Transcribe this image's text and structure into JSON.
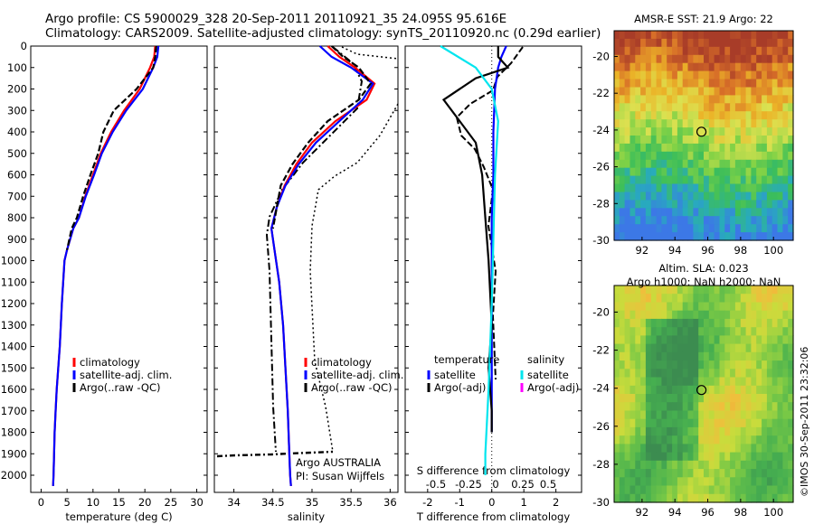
{
  "header": {
    "line1": "Argo profile: CS 5900029_328 20-Sep-2011 20110921_35 24.095S 95.616E",
    "line2": "Climatology: CARS2009. Satellite-adjusted climatology: synTS_20110920.nc (0.29d earlier)"
  },
  "footer": {
    "credit": "©IMOS 30-Sep-2011 23:32:06",
    "argo_label": "Argo AUSTRALIA",
    "pi_label": "PI: Susan Wijffels"
  },
  "colors": {
    "climatology": "#ff0000",
    "satellite": "#0000ff",
    "argo": "#000000",
    "sal_satellite": "#00e5ee",
    "sal_argo": "#ff00ff"
  },
  "chart_data": [
    {
      "type": "line",
      "id": "temperature",
      "xlabel": "temperature (deg C)",
      "ylabel": "",
      "xlim": [
        -2,
        32
      ],
      "ylim": [
        2080,
        0
      ],
      "xticks": [
        0,
        5,
        10,
        15,
        20,
        25,
        30
      ],
      "yticks": [
        0,
        100,
        200,
        300,
        400,
        500,
        600,
        700,
        800,
        900,
        1000,
        1100,
        1200,
        1300,
        1400,
        1500,
        1600,
        1700,
        1800,
        1900,
        2000
      ],
      "legend": [
        "climatology",
        "satellite-adj. clim.",
        "Argo(..raw -QC)"
      ],
      "series": [
        {
          "name": "climatology",
          "color": "#ff0000",
          "style": "solid",
          "x": [
            22.0,
            21.8,
            21.0,
            19.0,
            16.0,
            13.5,
            11.5,
            10.0,
            8.5,
            7.3,
            6.2,
            5.0,
            4.5,
            4.0,
            3.6,
            3.3,
            3.0,
            2.8,
            2.6,
            2.5,
            2.4,
            2.3
          ],
          "y": [
            0,
            50,
            100,
            200,
            300,
            400,
            500,
            600,
            700,
            800,
            850,
            950,
            1000,
            1200,
            1400,
            1500,
            1600,
            1700,
            1800,
            1900,
            2000,
            2050
          ]
        },
        {
          "name": "satellite-adj. clim.",
          "color": "#0000ff",
          "style": "solid",
          "x": [
            22.6,
            22.4,
            21.6,
            19.6,
            16.4,
            13.8,
            11.7,
            10.2,
            8.6,
            7.3,
            6.2,
            5.0,
            4.5,
            4.0,
            3.6,
            3.3,
            3.0,
            2.8,
            2.6,
            2.5,
            2.4,
            2.3
          ],
          "y": [
            0,
            50,
            100,
            200,
            300,
            400,
            500,
            600,
            700,
            800,
            850,
            950,
            1000,
            1200,
            1400,
            1500,
            1600,
            1700,
            1800,
            1900,
            2000,
            2050
          ]
        },
        {
          "name": "Argo(..raw -QC)",
          "color": "#000000",
          "style": "dashed",
          "x": [
            22.2,
            22.0,
            21.6,
            18.4,
            14.0,
            12.0,
            11.0,
            9.5,
            8.1,
            6.9,
            5.9,
            5.0
          ],
          "y": [
            0,
            50,
            100,
            200,
            300,
            400,
            500,
            600,
            700,
            800,
            850,
            950
          ]
        }
      ]
    },
    {
      "type": "line",
      "id": "salinity",
      "xlabel": "salinity",
      "ylabel": "",
      "xlim": [
        33.75,
        36.1
      ],
      "ylim": [
        2080,
        0
      ],
      "xticks": [
        34,
        34.5,
        35,
        35.5,
        36
      ],
      "legend": [
        "climatology",
        "satellite-adj. clim.",
        "Argo(..raw -QC)"
      ],
      "series": [
        {
          "name": "climatology",
          "color": "#ff0000",
          "style": "solid",
          "x": [
            35.2,
            35.35,
            35.55,
            35.8,
            35.7,
            35.3,
            35.0,
            34.8,
            34.65,
            34.55,
            34.48,
            34.52,
            34.58,
            34.63,
            34.66,
            34.69,
            34.71,
            34.72,
            34.73
          ],
          "y": [
            0,
            50,
            100,
            175,
            250,
            350,
            450,
            550,
            650,
            750,
            850,
            950,
            1100,
            1300,
            1500,
            1700,
            1900,
            2000,
            2050
          ]
        },
        {
          "name": "satellite-adj. clim.",
          "color": "#0000ff",
          "style": "solid",
          "x": [
            35.1,
            35.25,
            35.5,
            35.78,
            35.65,
            35.35,
            35.05,
            34.83,
            34.66,
            34.55,
            34.48,
            34.52,
            34.58,
            34.63,
            34.66,
            34.69,
            34.71,
            34.72,
            34.73
          ],
          "y": [
            0,
            50,
            100,
            175,
            250,
            350,
            450,
            550,
            650,
            750,
            850,
            950,
            1100,
            1300,
            1500,
            1700,
            1900,
            2000,
            2050
          ]
        },
        {
          "name": "Argo(..raw -QC)",
          "color": "#000000",
          "style": "dashed",
          "x": [
            35.25,
            35.4,
            35.6,
            35.75,
            35.6,
            35.2,
            34.95,
            34.75,
            34.6,
            34.5
          ],
          "y": [
            0,
            50,
            100,
            175,
            250,
            350,
            450,
            550,
            650,
            850
          ]
        }
      ]
    },
    {
      "type": "line",
      "id": "difference",
      "xlabel": "T difference from climatology",
      "xlabel_top": "S difference from climatology",
      "xlim": [
        -2.7,
        2.8
      ],
      "ylim": [
        2080,
        0
      ],
      "xticks": [
        -2,
        -1,
        0,
        1,
        2
      ],
      "top_ticks": [
        "-0.5",
        "-0.25",
        "0",
        "0.25",
        "0.5"
      ],
      "legend_temperature": "temperature",
      "legend_salinity": "salinity",
      "legend": [
        "satellite",
        "Argo(-adj)",
        "satellite",
        "Argo(-adj)"
      ],
      "series": [
        {
          "name": "satellite",
          "color": "#0000ff",
          "style": "solid",
          "x": [
            0.45,
            0.3,
            0.2,
            0.1,
            0.05,
            0.05,
            0,
            0,
            0,
            0
          ],
          "y": [
            0,
            50,
            100,
            200,
            400,
            600,
            800,
            1000,
            1400,
            1800
          ]
        },
        {
          "name": "Argo(-adj)",
          "color": "#000000",
          "style": "solid",
          "x": [
            0.2,
            0.2,
            0.5,
            -0.5,
            -1.5,
            -1.0,
            -0.5,
            -0.3,
            -0.2,
            -0.1,
            0,
            -0.1,
            0,
            0
          ],
          "y": [
            0,
            50,
            100,
            150,
            250,
            350,
            450,
            600,
            800,
            1000,
            1300,
            1500,
            1700,
            1800
          ]
        },
        {
          "name": "satellite",
          "color": "#00e5ee",
          "style": "solid",
          "x": [
            -1.6,
            -0.5,
            0,
            0.2,
            0.1,
            0.05,
            0,
            -0.1,
            -0.2,
            -0.2
          ],
          "y": [
            0,
            100,
            200,
            350,
            600,
            900,
            1200,
            1600,
            1900,
            2000
          ]
        }
      ]
    },
    {
      "type": "heatmap",
      "id": "sst_map",
      "title": "AMSR-E SST: 21.9 Argo: 22",
      "xlim": [
        90.3,
        101.2
      ],
      "ylim": [
        -30,
        -18.6
      ],
      "xticks": [
        92,
        94,
        96,
        98,
        100
      ],
      "yticks": [
        -20,
        -22,
        -24,
        -26,
        -28,
        -30
      ],
      "marker": {
        "lon": 95.616,
        "lat": -24.095
      }
    },
    {
      "type": "heatmap",
      "id": "sla_map",
      "title_line1": "Altim. SLA: 0.023",
      "title_line2": "Argo h1000: NaN h2000: NaN",
      "xlim": [
        90.3,
        101.2
      ],
      "ylim": [
        -30,
        -18.6
      ],
      "xticks": [
        92,
        94,
        96,
        98,
        100
      ],
      "yticks": [
        -20,
        -22,
        -24,
        -26,
        -28,
        -30
      ],
      "marker": {
        "lon": 95.616,
        "lat": -24.095
      }
    }
  ]
}
